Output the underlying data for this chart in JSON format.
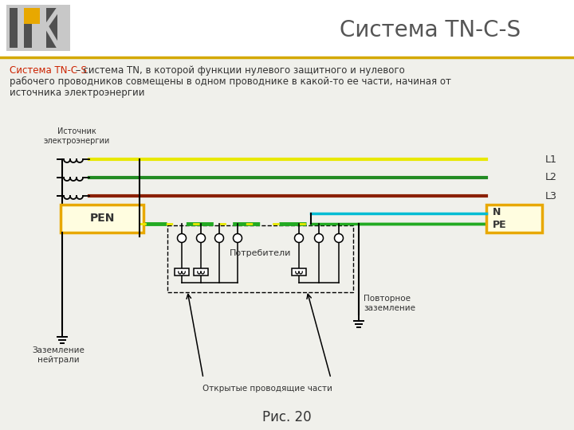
{
  "title": "Система TN-C-S",
  "bg_color": "#f0f0eb",
  "header_bg": "#f0f0eb",
  "caption": "Рис. 20",
  "line_colors": {
    "L1": "#e8e800",
    "L2": "#228B22",
    "L3": "#8B2000",
    "N": "#00bcd4",
    "PE": "#22aa22",
    "PEN_yellow": "#e8e800",
    "PEN_green": "#22aa22",
    "black": "#000000",
    "box_border": "#e8a800"
  },
  "labels": {
    "source": "Источник\nэлектроэнергии",
    "L1": "L1",
    "L2": "L2",
    "L3": "L3",
    "N": "N",
    "PE": "PE",
    "PEN": "PEN",
    "consumers": "Потребители",
    "repeat_ground": "Повторное\nзаземление",
    "neutral_ground": "Заземление\nнейтрали",
    "open_parts": "Открытые проводящие части"
  },
  "desc_red": "Система TN-C-S",
  "desc_black": " – система TN, в которой функции нулевого защитного и нулевого",
  "desc_line2": "рабочего проводников совмещены в одном проводнике в какой-то ее части, начиная от",
  "desc_line3": "источника электроэнергии"
}
